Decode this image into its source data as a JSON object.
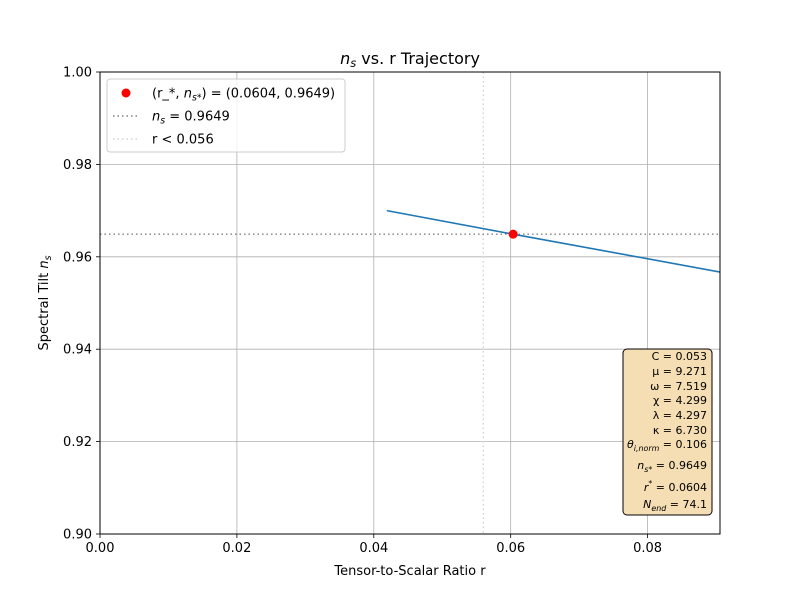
{
  "chart_data": {
    "type": "line",
    "title": "n_s vs. r Trajectory",
    "xlabel": "Tensor-to-Scalar Ratio r",
    "ylabel": "Spectral Tilt n_s",
    "xlim": [
      0.0,
      0.09058
    ],
    "ylim": [
      0.9,
      1.0
    ],
    "xticks": [
      "0.00",
      "0.02",
      "0.04",
      "0.06",
      "0.08"
    ],
    "yticks": [
      "0.90",
      "0.92",
      "0.94",
      "0.96",
      "0.98",
      "1.00"
    ],
    "grid": true,
    "legend_position": "top-left",
    "series": [
      {
        "kind": "line",
        "color": "#1f77b4",
        "x": [
          0.0419,
          0.06036,
          0.0906
        ],
        "y": [
          0.97,
          0.9649,
          0.9567
        ]
      }
    ],
    "marker": {
      "label": "(r_*, n_s*) = (0.0604, 0.9649)",
      "x": 0.06036,
      "y": 0.9649,
      "color": "#ff0000"
    },
    "hline": {
      "label": "n_s = 0.9649",
      "y": 0.9649,
      "color": "#808080",
      "style": "dotted"
    },
    "vline": {
      "label": "r < 0.056",
      "x": 0.056,
      "color": "#d3d3d3",
      "style": "dotted"
    },
    "legend": [
      {
        "label": "(r_*, n_s*) = (0.0604, 0.9649)",
        "type": "marker",
        "color": "#ff0000"
      },
      {
        "label": "n_s = 0.9649",
        "type": "dotted-line",
        "color": "#808080"
      },
      {
        "label": "r < 0.056",
        "type": "dotted-line",
        "color": "#d3d3d3"
      }
    ],
    "params_box": {
      "facecolor": "#f5deb3",
      "lines": [
        "C = 0.053",
        "μ = 9.271",
        "ω = 7.519",
        "χ = 4.299",
        "λ = 4.297",
        "κ = 6.730",
        "θ_i,norm = 0.106",
        "n_s* = 0.9649",
        "r* = 0.0604",
        "N_end = 74.1"
      ]
    }
  }
}
